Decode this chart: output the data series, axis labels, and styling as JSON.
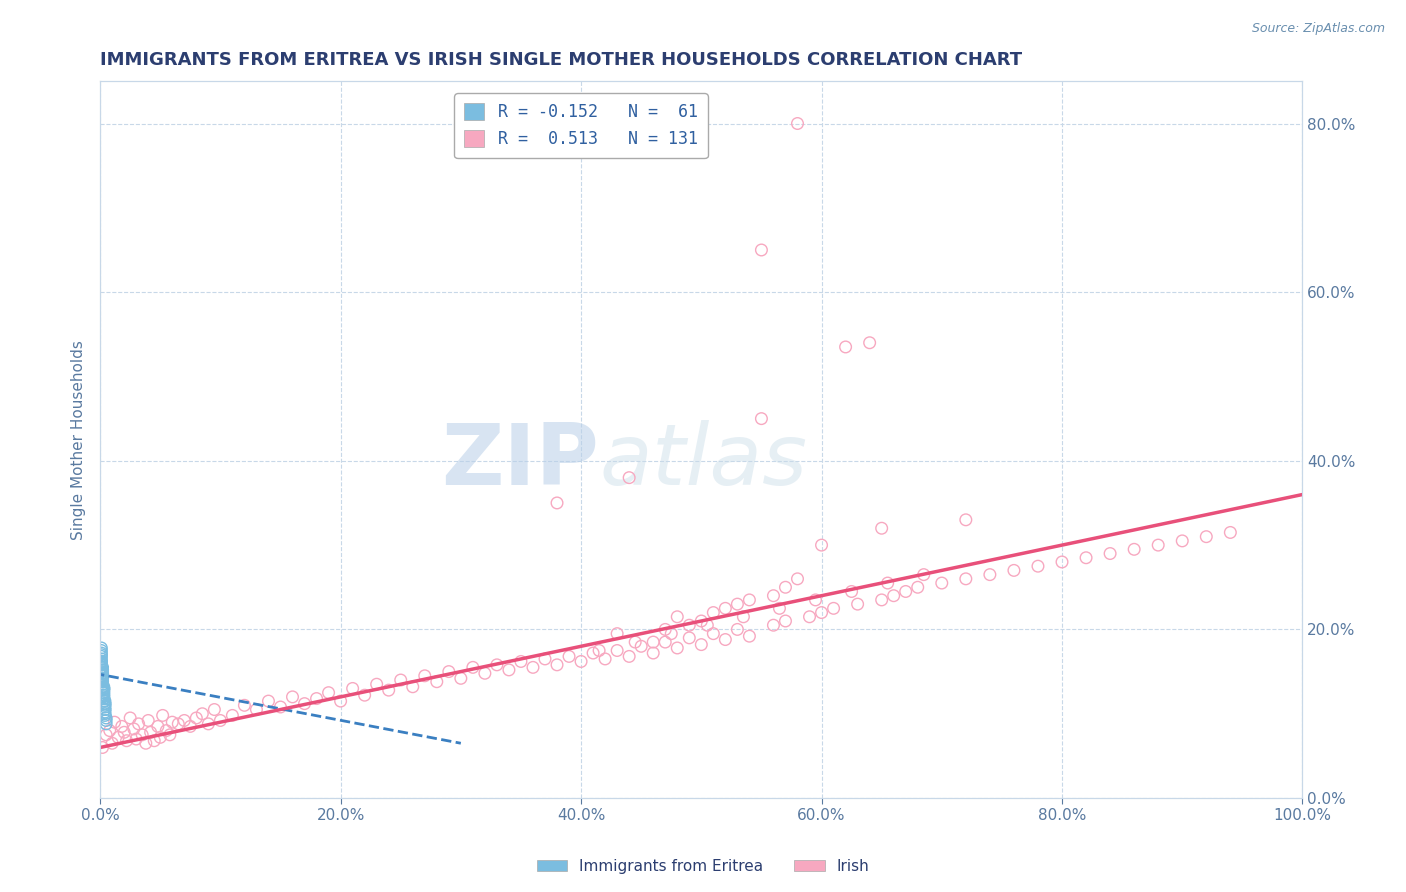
{
  "title": "IMMIGRANTS FROM ERITREA VS IRISH SINGLE MOTHER HOUSEHOLDS CORRELATION CHART",
  "source": "Source: ZipAtlas.com",
  "ylabel": "Single Mother Households",
  "legend_label_1": "Immigrants from Eritrea",
  "legend_label_2": "Irish",
  "r1": -0.152,
  "n1": 61,
  "r2": 0.513,
  "n2": 131,
  "color1": "#7bbde0",
  "color2": "#f7a8c0",
  "trendline1_color": "#3a7fc1",
  "trendline2_color": "#e8507a",
  "background_color": "#ffffff",
  "grid_color": "#c8d8e8",
  "title_color": "#2c3e70",
  "source_color": "#6a8faf",
  "axis_color": "#5a7aa0",
  "tick_label_color": "#5a7aa0",
  "legend_text_color": "#2c3e70",
  "r_value_color": "#3060a0",
  "watermark_zip": "ZIP",
  "watermark_atlas": "atlas",
  "xlim": [
    0.0,
    1.0
  ],
  "ylim": [
    0.0,
    0.85
  ],
  "x_ticks": [
    0.0,
    0.2,
    0.4,
    0.6,
    0.8,
    1.0
  ],
  "x_tick_labels": [
    "0.0%",
    "20.0%",
    "40.0%",
    "60.0%",
    "80.0%",
    "100.0%"
  ],
  "y_ticks": [
    0.0,
    0.2,
    0.4,
    0.6,
    0.8
  ],
  "y_tick_labels": [
    "0.0%",
    "20.0%",
    "40.0%",
    "60.0%",
    "80.0%"
  ],
  "scatter1_x": [
    0.001,
    0.002,
    0.001,
    0.003,
    0.004,
    0.002,
    0.003,
    0.002,
    0.004,
    0.001,
    0.001,
    0.005,
    0.002,
    0.003,
    0.002,
    0.003,
    0.001,
    0.004,
    0.001,
    0.002,
    0.005,
    0.002,
    0.003,
    0.001,
    0.003,
    0.004,
    0.002,
    0.002,
    0.004,
    0.001,
    0.001,
    0.003,
    0.002,
    0.003,
    0.002,
    0.004,
    0.001,
    0.005,
    0.002,
    0.003,
    0.002,
    0.001,
    0.004,
    0.003,
    0.002,
    0.004,
    0.001,
    0.002,
    0.003,
    0.002,
    0.001,
    0.003,
    0.004,
    0.002,
    0.002,
    0.003,
    0.001,
    0.004,
    0.002,
    0.003,
    0.002
  ],
  "scatter1_y": [
    0.145,
    0.132,
    0.168,
    0.115,
    0.098,
    0.142,
    0.125,
    0.155,
    0.108,
    0.162,
    0.178,
    0.092,
    0.138,
    0.118,
    0.148,
    0.128,
    0.158,
    0.102,
    0.172,
    0.135,
    0.088,
    0.145,
    0.122,
    0.165,
    0.132,
    0.112,
    0.14,
    0.152,
    0.105,
    0.16,
    0.175,
    0.12,
    0.148,
    0.13,
    0.142,
    0.11,
    0.162,
    0.095,
    0.145,
    0.125,
    0.138,
    0.155,
    0.1,
    0.13,
    0.148,
    0.115,
    0.17,
    0.14,
    0.122,
    0.15,
    0.16,
    0.128,
    0.105,
    0.142,
    0.152,
    0.118,
    0.158,
    0.112,
    0.138,
    0.13,
    0.148
  ],
  "scatter2_x": [
    0.002,
    0.005,
    0.008,
    0.01,
    0.012,
    0.015,
    0.018,
    0.02,
    0.022,
    0.025,
    0.028,
    0.03,
    0.032,
    0.035,
    0.038,
    0.04,
    0.042,
    0.045,
    0.048,
    0.05,
    0.052,
    0.055,
    0.058,
    0.06,
    0.065,
    0.07,
    0.075,
    0.08,
    0.085,
    0.09,
    0.095,
    0.1,
    0.11,
    0.12,
    0.13,
    0.14,
    0.15,
    0.16,
    0.17,
    0.18,
    0.19,
    0.2,
    0.21,
    0.22,
    0.23,
    0.24,
    0.25,
    0.26,
    0.27,
    0.28,
    0.29,
    0.3,
    0.31,
    0.32,
    0.33,
    0.34,
    0.35,
    0.36,
    0.37,
    0.38,
    0.39,
    0.4,
    0.41,
    0.42,
    0.43,
    0.44,
    0.45,
    0.46,
    0.47,
    0.48,
    0.49,
    0.5,
    0.51,
    0.52,
    0.53,
    0.54,
    0.55,
    0.56,
    0.57,
    0.58,
    0.59,
    0.6,
    0.61,
    0.62,
    0.63,
    0.64,
    0.65,
    0.66,
    0.67,
    0.68,
    0.7,
    0.72,
    0.74,
    0.76,
    0.78,
    0.8,
    0.82,
    0.84,
    0.86,
    0.88,
    0.9,
    0.92,
    0.94,
    0.55,
    0.44,
    0.38,
    0.6,
    0.58,
    0.65,
    0.72,
    0.48,
    0.52,
    0.43,
    0.5,
    0.56,
    0.49,
    0.51,
    0.47,
    0.54,
    0.57,
    0.46,
    0.53,
    0.415,
    0.445,
    0.475,
    0.505,
    0.535,
    0.565,
    0.595,
    0.625,
    0.655,
    0.685
  ],
  "scatter2_y": [
    0.06,
    0.075,
    0.08,
    0.065,
    0.09,
    0.072,
    0.085,
    0.078,
    0.068,
    0.095,
    0.082,
    0.07,
    0.088,
    0.075,
    0.065,
    0.092,
    0.078,
    0.068,
    0.085,
    0.072,
    0.098,
    0.08,
    0.075,
    0.09,
    0.088,
    0.092,
    0.085,
    0.095,
    0.1,
    0.088,
    0.105,
    0.092,
    0.098,
    0.11,
    0.105,
    0.115,
    0.108,
    0.12,
    0.112,
    0.118,
    0.125,
    0.115,
    0.13,
    0.122,
    0.135,
    0.128,
    0.14,
    0.132,
    0.145,
    0.138,
    0.15,
    0.142,
    0.155,
    0.148,
    0.158,
    0.152,
    0.162,
    0.155,
    0.165,
    0.158,
    0.168,
    0.162,
    0.172,
    0.165,
    0.175,
    0.168,
    0.18,
    0.172,
    0.185,
    0.178,
    0.19,
    0.182,
    0.195,
    0.188,
    0.2,
    0.192,
    0.65,
    0.205,
    0.21,
    0.8,
    0.215,
    0.22,
    0.225,
    0.535,
    0.23,
    0.54,
    0.235,
    0.24,
    0.245,
    0.25,
    0.255,
    0.26,
    0.265,
    0.27,
    0.275,
    0.28,
    0.285,
    0.29,
    0.295,
    0.3,
    0.305,
    0.31,
    0.315,
    0.45,
    0.38,
    0.35,
    0.3,
    0.26,
    0.32,
    0.33,
    0.215,
    0.225,
    0.195,
    0.21,
    0.24,
    0.205,
    0.22,
    0.2,
    0.235,
    0.25,
    0.185,
    0.23,
    0.175,
    0.185,
    0.195,
    0.205,
    0.215,
    0.225,
    0.235,
    0.245,
    0.255,
    0.265
  ],
  "trendline1_x": [
    -0.005,
    0.3
  ],
  "trendline1_y": [
    0.148,
    0.065
  ],
  "trendline2_x": [
    0.0,
    1.0
  ],
  "trendline2_y": [
    0.06,
    0.36
  ],
  "marker_size": 70,
  "marker_linewidth": 1.0
}
